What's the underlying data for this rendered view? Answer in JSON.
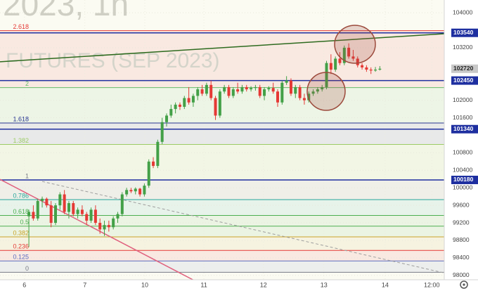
{
  "chart_data": {
    "type": "candlestick",
    "watermark": [
      "2023, 1h",
      "FUTURES (SEP 2023)"
    ],
    "up_color": "#43a047",
    "down_color": "#e53935",
    "xlim": [
      -6.5,
      93.5
    ],
    "ylim": [
      97900,
      104290
    ],
    "xticks": [
      {
        "value": -1,
        "label": "6"
      },
      {
        "value": 12.6,
        "label": "7"
      },
      {
        "value": 26.1,
        "label": "10"
      },
      {
        "value": 39.4,
        "label": "11"
      },
      {
        "value": 52.8,
        "label": "12"
      },
      {
        "value": 66.4,
        "label": "13"
      },
      {
        "value": 80.2,
        "label": "14"
      },
      {
        "value": 90.7,
        "label": "12:00"
      }
    ],
    "yticks": [
      104000,
      103200,
      102000,
      101600,
      100800,
      100400,
      100000,
      99600,
      99200,
      98800,
      98400,
      98000
    ],
    "x": [
      0,
      1,
      2,
      3,
      4,
      5,
      6,
      7,
      8,
      9,
      10,
      11,
      12,
      13,
      14,
      15,
      16,
      17,
      18,
      19,
      20,
      21,
      22,
      23,
      24,
      25,
      26,
      27,
      28,
      29,
      30,
      31,
      32,
      33,
      34,
      35,
      36,
      37,
      38,
      39,
      40,
      41,
      42,
      43,
      44,
      45,
      46,
      47,
      48,
      49,
      50,
      51,
      52,
      53,
      54,
      55,
      56,
      57,
      58,
      59,
      60,
      61,
      62,
      63,
      64,
      65,
      66,
      67,
      68,
      69,
      70,
      71,
      72,
      73,
      74,
      75,
      76,
      77,
      78,
      79
    ],
    "open": [
      99350,
      99450,
      99300,
      99700,
      99750,
      99600,
      99200,
      99600,
      99850,
      99450,
      99650,
      99400,
      99500,
      99400,
      99250,
      99500,
      99200,
      99050,
      99150,
      99100,
      99300,
      99400,
      99850,
      99950,
      99920,
      99980,
      99850,
      100050,
      100600,
      100500,
      101050,
      101500,
      101650,
      101800,
      101900,
      101850,
      102050,
      101950,
      102100,
      102250,
      102150,
      102350,
      102050,
      101650,
      102200,
      102300,
      102100,
      102250,
      102200,
      102300,
      102250,
      102280,
      102300,
      102100,
      102250,
      102280,
      102200,
      101950,
      102400,
      102450,
      102150,
      102300,
      102050,
      102000,
      102150,
      102200,
      102250,
      102300,
      102850,
      102700,
      102950,
      102850,
      103200,
      103000,
      102950,
      102800,
      102750,
      102700,
      102680,
      102700
    ],
    "high": [
      99500,
      99600,
      99750,
      99800,
      99780,
      99700,
      99650,
      99900,
      99950,
      99700,
      99700,
      99550,
      99600,
      99450,
      99550,
      99600,
      99300,
      99250,
      99250,
      99350,
      99450,
      99900,
      100000,
      100000,
      100010,
      100000,
      100100,
      100650,
      100700,
      101100,
      101600,
      101700,
      101900,
      101950,
      101950,
      102100,
      102300,
      102150,
      102300,
      102350,
      102400,
      102450,
      102100,
      102250,
      102350,
      102350,
      102300,
      102400,
      102350,
      102350,
      102320,
      102350,
      102350,
      102300,
      102320,
      102400,
      102250,
      102450,
      102550,
      102500,
      102350,
      102350,
      102150,
      102200,
      102250,
      102300,
      102350,
      102900,
      103050,
      103000,
      103100,
      103250,
      103300,
      103150,
      103000,
      102850,
      102800,
      102750,
      102760,
      102780
    ],
    "low": [
      98650,
      99250,
      99250,
      99550,
      99550,
      99100,
      99150,
      99500,
      99400,
      99300,
      99350,
      99300,
      99350,
      99150,
      99200,
      99150,
      98950,
      98900,
      99000,
      99050,
      99200,
      99350,
      99800,
      99880,
      99850,
      99800,
      99800,
      100000,
      100450,
      100450,
      101000,
      101400,
      101600,
      101700,
      101780,
      101800,
      101900,
      101850,
      102000,
      102100,
      102100,
      102000,
      101550,
      101600,
      102150,
      102050,
      102050,
      102150,
      102150,
      102200,
      102200,
      102220,
      102050,
      102000,
      102200,
      102150,
      101850,
      101900,
      102350,
      102100,
      102050,
      102000,
      101900,
      101950,
      102100,
      102150,
      102200,
      102250,
      102600,
      102650,
      102800,
      102800,
      102950,
      102900,
      102750,
      102700,
      102650,
      102600,
      102650,
      102680
    ],
    "close": [
      99450,
      99300,
      99700,
      99750,
      99600,
      99200,
      99600,
      99850,
      99450,
      99650,
      99400,
      99500,
      99400,
      99250,
      99500,
      99200,
      99050,
      99150,
      99100,
      99300,
      99400,
      99850,
      99950,
      99920,
      99980,
      99850,
      100050,
      100600,
      100500,
      101050,
      101500,
      101650,
      101800,
      101900,
      101850,
      102050,
      101950,
      102100,
      102250,
      102150,
      102350,
      102050,
      101650,
      102200,
      102300,
      102100,
      102250,
      102200,
      102300,
      102250,
      102280,
      102300,
      102100,
      102250,
      102280,
      102200,
      101950,
      102400,
      102450,
      102150,
      102300,
      102050,
      102000,
      102150,
      102200,
      102250,
      102300,
      102850,
      102700,
      102950,
      102850,
      103200,
      103000,
      102950,
      102800,
      102750,
      102700,
      102680,
      102700,
      102720
    ],
    "fib": [
      {
        "level": 2.618,
        "value": 103590,
        "color": "#e53935"
      },
      {
        "level": 2,
        "value": 102290,
        "color": "#66bb6a"
      },
      {
        "level": 1.618,
        "value": 101480,
        "color": "#283593"
      },
      {
        "level": 1.382,
        "value": 100990,
        "color": "#9ccc65"
      },
      {
        "level": 1,
        "value": 100180,
        "color": "#787b86"
      },
      {
        "level": 0.786,
        "value": 99730,
        "color": "#26a69a"
      },
      {
        "level": 0.618,
        "value": 99370,
        "color": "#4caf50"
      },
      {
        "level": 0.5,
        "value": 99125,
        "color": "#4caf50"
      },
      {
        "level": 0.382,
        "value": 98880,
        "color": "#c9a227"
      },
      {
        "level": 0.236,
        "value": 98570,
        "color": "#e53935"
      },
      {
        "level": 0.125,
        "value": 98330,
        "color": "#5c6bc0"
      },
      {
        "level": 0,
        "value": 98070,
        "color": "#787b86"
      }
    ],
    "price_lines": [
      {
        "value": 103540,
        "color": "#1e2fa0"
      },
      {
        "value": 102450,
        "color": "#1e2fa0"
      },
      {
        "value": 101340,
        "color": "#1e2fa0"
      },
      {
        "value": 100180,
        "color": "#1e2fa0"
      }
    ],
    "current_price": {
      "value": 102720,
      "color": "#c8c8c8"
    },
    "trendlines": [
      {
        "color": "#2e6b1f",
        "dash": false,
        "x": [
          -6.5,
          93.5
        ],
        "y": [
          102880,
          103520
        ]
      },
      {
        "color": "#e0607e",
        "dash": false,
        "x": [
          -6.5,
          37
        ],
        "y": [
          100193,
          97896
        ]
      },
      {
        "color": "#9e9e9e",
        "dash": true,
        "x": [
          3,
          93.5
        ],
        "y": [
          100145,
          98056
        ]
      }
    ]
  }
}
